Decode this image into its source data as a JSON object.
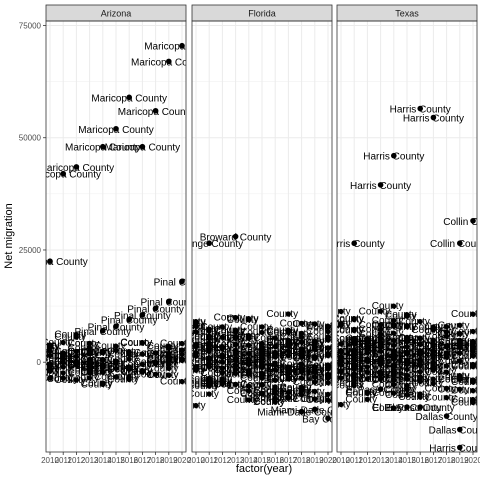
{
  "chart_data": {
    "type": "scatter",
    "xlabel": "factor(year)",
    "ylabel": "Net migration",
    "ylim": [
      -20000,
      76000
    ],
    "y_ticks": [
      0,
      25000,
      50000,
      75000
    ],
    "y_tick_labels": [
      "0",
      "25000",
      "50000",
      "75000"
    ],
    "x_categories": [
      "2010",
      "2011",
      "2012",
      "2013",
      "2014",
      "2015",
      "2016",
      "2017",
      "2018",
      "2019",
      "2020"
    ],
    "x_tick_labels": [
      "2010",
      "2011",
      "2012",
      "2013",
      "2014",
      "2015",
      "2016",
      "2017",
      "2018",
      "2019",
      "2020"
    ],
    "grid": true,
    "panels": [
      {
        "name": "Arizona",
        "points": [
          {
            "year": "2020",
            "y": 70500,
            "label": "Maricopa County"
          },
          {
            "year": "2019",
            "y": 67000,
            "label": "Maricopa County"
          },
          {
            "year": "2016",
            "y": 59000,
            "label": "Maricopa County"
          },
          {
            "year": "2018",
            "y": 56000,
            "label": "Maricopa County"
          },
          {
            "year": "2015",
            "y": 52000,
            "label": "Maricopa County"
          },
          {
            "year": "2014",
            "y": 48000,
            "label": "Maricopa County"
          },
          {
            "year": "2017",
            "y": 48000,
            "label": "Maricopa County"
          },
          {
            "year": "2012",
            "y": 43500,
            "label": "Maricopa County"
          },
          {
            "year": "2011",
            "y": 42000,
            "label": "Maricopa County"
          },
          {
            "year": "2010",
            "y": 22500,
            "label": "Maricopa County"
          },
          {
            "year": "2020",
            "y": 18000,
            "label": "Pinal County"
          },
          {
            "year": "2019",
            "y": 13500,
            "label": "Pinal County"
          },
          {
            "year": "2018",
            "y": 12000,
            "label": "Pinal County"
          },
          {
            "year": "2017",
            "y": 10500,
            "label": "Pinal County"
          },
          {
            "year": "2016",
            "y": 9500,
            "label": "Pinal County"
          },
          {
            "year": "2015",
            "y": 8000,
            "label": "Pinal County"
          },
          {
            "year": "2014",
            "y": 7000,
            "label": "Pinal County"
          },
          {
            "year": "2010",
            "y": -3500,
            "label": "Pinal County"
          }
        ]
      },
      {
        "name": "Florida",
        "points": [
          {
            "year": "2014",
            "y": -2500,
            "label": "Leon County"
          },
          {
            "year": "2017",
            "y": -8000,
            "label": "Miami-Dade County"
          },
          {
            "year": "2019",
            "y": -10500,
            "label": "Miami-Dade County"
          },
          {
            "year": "2018",
            "y": -11000,
            "label": "Miami-Dade County"
          },
          {
            "year": "2020",
            "y": -12500,
            "label": "Bay County"
          },
          {
            "year": "2013",
            "y": 28000,
            "label": "Broward County"
          },
          {
            "year": "2011",
            "y": 26500,
            "label": "Orange County"
          }
        ]
      },
      {
        "name": "Texas",
        "points": [
          {
            "year": "2016",
            "y": 56500,
            "label": "Harris County"
          },
          {
            "year": "2017",
            "y": 54500,
            "label": "Harris County"
          },
          {
            "year": "2014",
            "y": 46000,
            "label": "Harris County"
          },
          {
            "year": "2013",
            "y": 39500,
            "label": "Harris County"
          },
          {
            "year": "2020",
            "y": 31500,
            "label": "Collin County"
          },
          {
            "year": "2019",
            "y": 26500,
            "label": "Collin County"
          },
          {
            "year": "2011",
            "y": 26500,
            "label": "Harris County"
          },
          {
            "year": "2015",
            "y": -10000,
            "label": "El Paso County"
          },
          {
            "year": "2016",
            "y": -10000,
            "label": "El Paso County"
          },
          {
            "year": "2013",
            "y": -6000,
            "label": "El Paso County"
          },
          {
            "year": "2019",
            "y": -15000,
            "label": "Dallas County"
          },
          {
            "year": "2018",
            "y": -12000,
            "label": "Dallas County"
          },
          {
            "year": "2019",
            "y": -19000,
            "label": "Harris County"
          }
        ]
      }
    ]
  }
}
